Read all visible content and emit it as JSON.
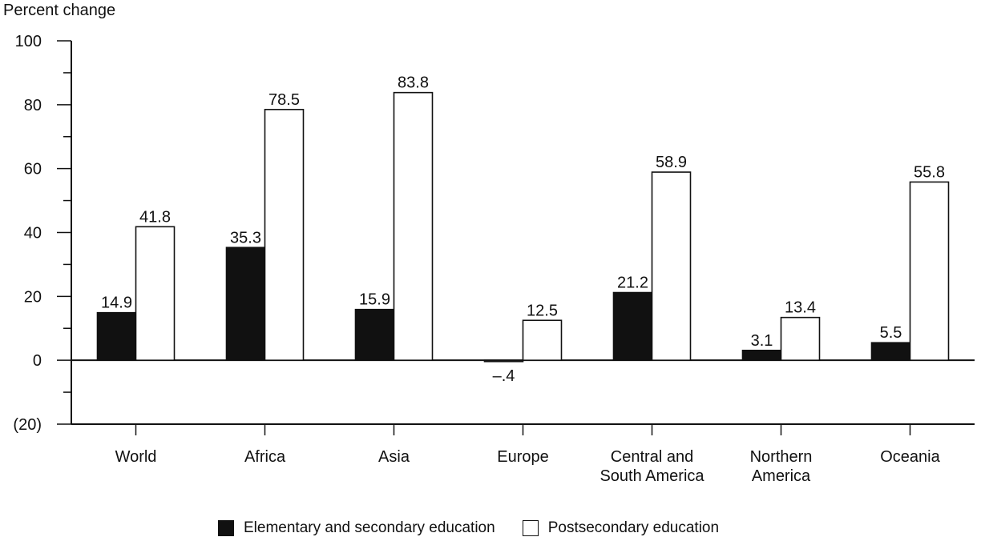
{
  "chart_data": {
    "type": "bar",
    "ylabel": "Percent change",
    "xlabel": "",
    "ylim": [
      -20,
      100
    ],
    "yticks": [
      100,
      80,
      60,
      40,
      20,
      0,
      -20
    ],
    "ytick_labels": [
      "100",
      "80",
      "60",
      "40",
      "20",
      "0",
      "(20)"
    ],
    "categories": [
      "World",
      "Africa",
      "Asia",
      "Europe",
      "Central and South America",
      "Northern America",
      "Oceania"
    ],
    "category_label_lines": [
      [
        "World"
      ],
      [
        "Africa"
      ],
      [
        "Asia"
      ],
      [
        "Europe"
      ],
      [
        "Central and",
        "South America"
      ],
      [
        "Northern",
        "America"
      ],
      [
        "Oceania"
      ]
    ],
    "series": [
      {
        "name": "Elementary and secondary education",
        "color": "#111111",
        "values": [
          14.9,
          35.3,
          15.9,
          -0.4,
          21.2,
          3.1,
          5.5
        ],
        "labels": [
          "14.9",
          "35.3",
          "15.9",
          "–.4",
          "21.2",
          "3.1",
          "5.5"
        ]
      },
      {
        "name": "Postsecondary education",
        "color": "#ffffff",
        "values": [
          41.8,
          78.5,
          83.8,
          12.5,
          58.9,
          13.4,
          55.8
        ],
        "labels": [
          "41.8",
          "78.5",
          "83.8",
          "12.5",
          "58.9",
          "13.4",
          "55.8"
        ]
      }
    ],
    "grid": false,
    "legend_position": "bottom"
  }
}
